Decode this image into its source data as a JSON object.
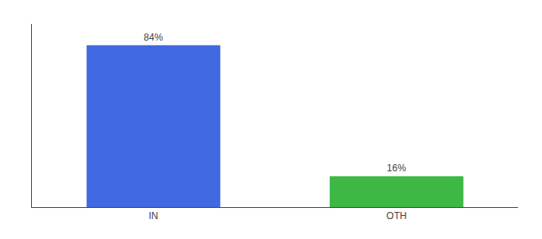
{
  "chart_data": {
    "type": "bar",
    "categories": [
      "IN",
      "OTH"
    ],
    "values": [
      84,
      16
    ],
    "value_labels": [
      "84%",
      "16%"
    ],
    "data_labels": true,
    "colors": [
      "#4169E1",
      "#3CB843"
    ],
    "ylim": [
      0,
      95
    ],
    "tick_labels": "x",
    "grid": false
  }
}
